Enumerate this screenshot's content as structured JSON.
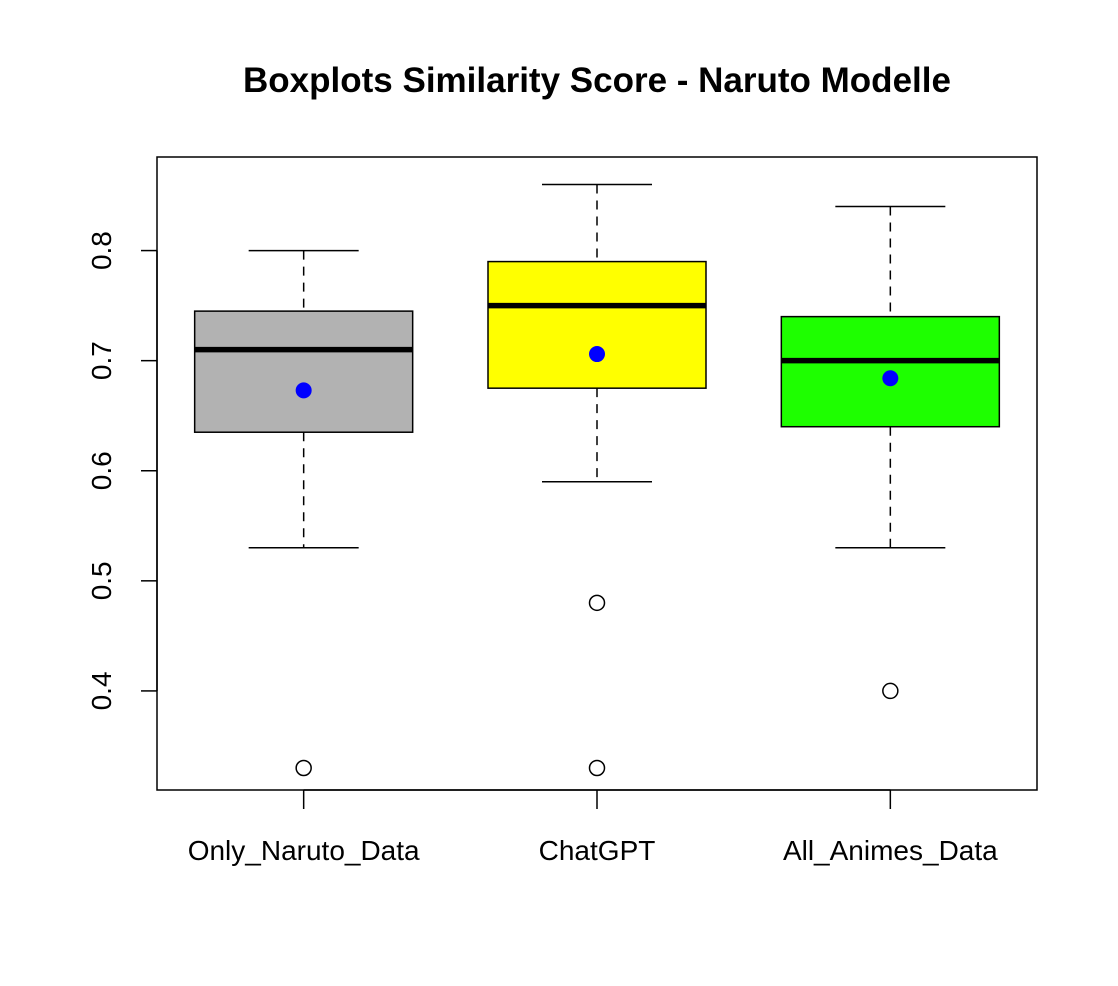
{
  "chart_data": {
    "type": "box",
    "title": "Boxplots Similarity Score - Naruto Modelle",
    "xlabel": "",
    "ylabel": "",
    "ylim": [
      0.31,
      0.885
    ],
    "yticks": [
      0.4,
      0.5,
      0.6,
      0.7,
      0.8
    ],
    "ytick_labels": [
      "0.4",
      "0.5",
      "0.6",
      "0.7",
      "0.8"
    ],
    "categories": [
      "Only_Naruto_Data",
      "ChatGPT",
      "All_Animes_Data"
    ],
    "grid": false,
    "mean_color": "#0000ff",
    "boxes": [
      {
        "category": "Only_Naruto_Data",
        "color": "#b2b2b2",
        "whisker_low": 0.53,
        "q1": 0.635,
        "median": 0.71,
        "q3": 0.745,
        "whisker_high": 0.8,
        "mean": 0.673,
        "outliers": [
          0.33
        ]
      },
      {
        "category": "ChatGPT",
        "color": "#ffff00",
        "whisker_low": 0.59,
        "q1": 0.675,
        "median": 0.75,
        "q3": 0.79,
        "whisker_high": 0.86,
        "mean": 0.706,
        "outliers": [
          0.48,
          0.33
        ]
      },
      {
        "category": "All_Animes_Data",
        "color": "#1eff00",
        "whisker_low": 0.53,
        "q1": 0.64,
        "median": 0.7,
        "q3": 0.74,
        "whisker_high": 0.84,
        "mean": 0.684,
        "outliers": [
          0.4
        ]
      }
    ]
  }
}
